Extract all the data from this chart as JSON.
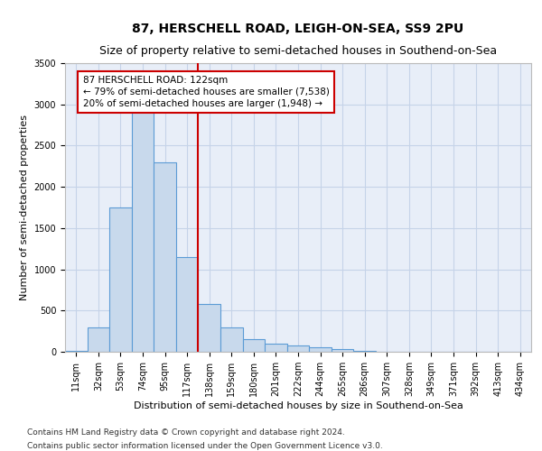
{
  "title": "87, HERSCHELL ROAD, LEIGH-ON-SEA, SS9 2PU",
  "subtitle": "Size of property relative to semi-detached houses in Southend-on-Sea",
  "xlabel": "Distribution of semi-detached houses by size in Southend-on-Sea",
  "ylabel": "Number of semi-detached properties",
  "footnote1": "Contains HM Land Registry data © Crown copyright and database right 2024.",
  "footnote2": "Contains public sector information licensed under the Open Government Licence v3.0.",
  "bin_labels": [
    "11sqm",
    "32sqm",
    "53sqm",
    "74sqm",
    "95sqm",
    "117sqm",
    "138sqm",
    "159sqm",
    "180sqm",
    "201sqm",
    "222sqm",
    "244sqm",
    "265sqm",
    "286sqm",
    "307sqm",
    "328sqm",
    "349sqm",
    "371sqm",
    "392sqm",
    "413sqm",
    "434sqm"
  ],
  "bar_values": [
    10,
    300,
    1750,
    3000,
    2300,
    1150,
    580,
    300,
    150,
    100,
    75,
    60,
    30,
    10,
    5,
    3,
    2,
    1,
    1,
    0,
    0
  ],
  "bar_color": "#c8d9ec",
  "bar_edge_color": "#5b9bd5",
  "property_line_x": 5.5,
  "property_sqm": 122,
  "annotation_text": "87 HERSCHELL ROAD: 122sqm\n← 79% of semi-detached houses are smaller (7,538)\n20% of semi-detached houses are larger (1,948) →",
  "annotation_box_color": "#cc0000",
  "vline_color": "#cc0000",
  "ylim": [
    0,
    3500
  ],
  "yticks": [
    0,
    500,
    1000,
    1500,
    2000,
    2500,
    3000,
    3500
  ],
  "grid_color": "#c5d3e8",
  "background_color": "#e8eef8",
  "title_fontsize": 10,
  "subtitle_fontsize": 9,
  "annotation_fontsize": 7.5,
  "axis_label_fontsize": 8,
  "tick_fontsize": 7,
  "footnote_fontsize": 6.5
}
